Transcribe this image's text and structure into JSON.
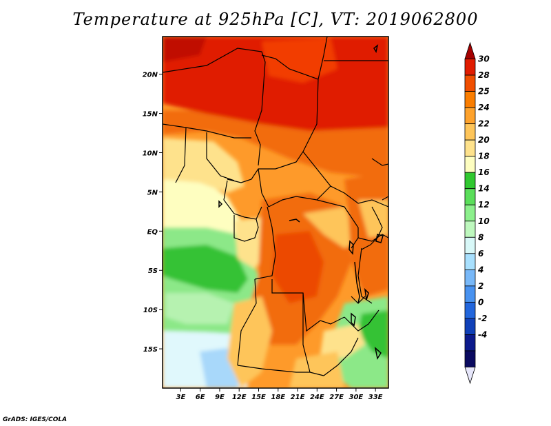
{
  "title": "Temperature at 925hPa [C], VT: 2019062800",
  "credit": "GrADS: IGES/COLA",
  "map": {
    "lat_ticks": [
      {
        "label": "20N",
        "lat": 20
      },
      {
        "label": "15N",
        "lat": 15
      },
      {
        "label": "10N",
        "lat": 10
      },
      {
        "label": "5N",
        "lat": 5
      },
      {
        "label": "EQ",
        "lat": 0
      },
      {
        "label": "5S",
        "lat": -5
      },
      {
        "label": "10S",
        "lat": -10
      },
      {
        "label": "15S",
        "lat": -15
      }
    ],
    "lon_ticks": [
      {
        "label": "3E",
        "lon": 3
      },
      {
        "label": "6E",
        "lon": 6
      },
      {
        "label": "9E",
        "lon": 9
      },
      {
        "label": "12E",
        "lon": 12
      },
      {
        "label": "15E",
        "lon": 15
      },
      {
        "label": "18E",
        "lon": 18
      },
      {
        "label": "21E",
        "lon": 21
      },
      {
        "label": "24E",
        "lon": 24
      },
      {
        "label": "27E",
        "lon": 27
      },
      {
        "label": "30E",
        "lon": 30
      },
      {
        "label": "33E",
        "lon": 33
      }
    ],
    "lon_range": [
      0.2,
      35.0
    ],
    "lat_range": [
      -20.0,
      24.8
    ]
  },
  "colorbar": {
    "labels": [
      "30",
      "28",
      "25",
      "24",
      "22",
      "20",
      "18",
      "16",
      "14",
      "12",
      "10",
      "8",
      "6",
      "4",
      "2",
      "0",
      "-2",
      "-4"
    ],
    "colors": [
      "#a50000",
      "#e01c00",
      "#f04e00",
      "#fa7d00",
      "#fea22c",
      "#fec55a",
      "#fee28c",
      "#fefec0",
      "#30c830",
      "#5ade5a",
      "#8cf08c",
      "#bef8be",
      "#d8f8f8",
      "#a8e0fe",
      "#78b8f8",
      "#4892f0",
      "#2266dc",
      "#1040b8",
      "#0c1a8c",
      "#0a0a60",
      "#e6e6fa"
    ]
  }
}
